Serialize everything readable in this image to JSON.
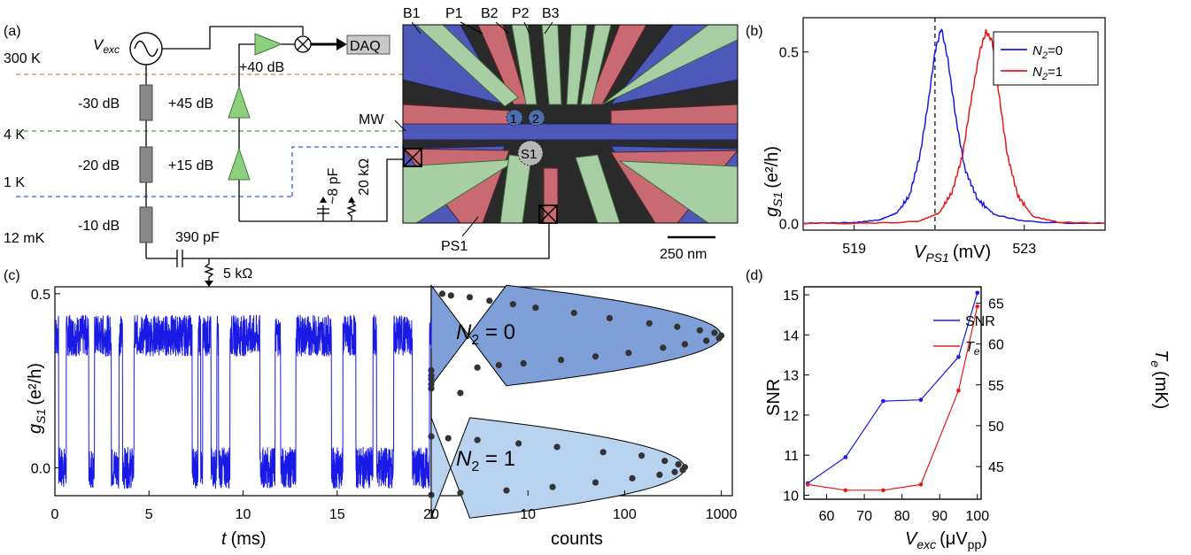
{
  "panels": {
    "a": {
      "label": "(a)",
      "temperatures": [
        "300 K",
        "4 K",
        "1 K",
        "12 mK"
      ],
      "source": "V",
      "source_sub": "exc",
      "attenuators": [
        "-30 dB",
        "-20 dB",
        "-10 dB"
      ],
      "amplifiers": [
        "+40 dB",
        "+45 dB",
        "+15 dB"
      ],
      "daq": "DAQ",
      "cap_c1": "390 pF",
      "res_r1": "5 kΩ",
      "cap_c2": "~8 pF",
      "res_r2": "20 kΩ",
      "gates": [
        "B1",
        "P1",
        "B2",
        "P2",
        "B3"
      ],
      "mw": "MW",
      "ps1": "PS1",
      "dots": [
        "1",
        "2",
        "S1"
      ],
      "scalebar": "250 nm"
    },
    "b": {
      "label": "(b)"
    },
    "c": {
      "label": "(c)"
    },
    "d": {
      "label": "(d)"
    }
  },
  "chart_data": [
    {
      "panel": "b",
      "type": "line",
      "xlabel": "V",
      "xlabel_sub": "PS1",
      "xlabel_unit": "(mV)",
      "ylabel": "g",
      "ylabel_sub": "S1",
      "ylabel_unit": "(e²/h)",
      "xlim": [
        517.8,
        524.9
      ],
      "ylim": [
        -0.02,
        0.6
      ],
      "xticks": [
        519,
        523
      ],
      "xticklabels": [
        "519",
        "523"
      ],
      "yticks": [
        0.0,
        0.5
      ],
      "yticklabels": [
        "0.0",
        "0.5"
      ],
      "vline_x": 520.9,
      "legend": "top-right",
      "series": [
        {
          "name": "N",
          "name_sub": "2",
          "name_tail": "=0",
          "color": "#1a1ae6",
          "x": [
            517.8,
            519.0,
            519.6,
            520.0,
            520.3,
            520.55,
            520.75,
            520.9,
            521.05,
            521.2,
            521.4,
            521.6,
            521.9,
            522.3,
            523.0,
            524.0,
            524.9
          ],
          "y": [
            0.0,
            0.002,
            0.01,
            0.03,
            0.08,
            0.2,
            0.36,
            0.5,
            0.57,
            0.48,
            0.3,
            0.16,
            0.07,
            0.025,
            0.006,
            0.0,
            0.0
          ]
        },
        {
          "name": "N",
          "name_sub": "2",
          "name_tail": "=1",
          "color": "#e61a1a",
          "x": [
            517.8,
            519.5,
            520.5,
            521.0,
            521.3,
            521.55,
            521.75,
            521.95,
            522.1,
            522.25,
            522.4,
            522.6,
            522.85,
            523.2,
            523.8,
            524.9
          ],
          "y": [
            0.0,
            0.0,
            0.005,
            0.03,
            0.09,
            0.2,
            0.36,
            0.5,
            0.56,
            0.53,
            0.38,
            0.2,
            0.08,
            0.02,
            0.003,
            0.0
          ]
        }
      ]
    },
    {
      "panel": "c-left",
      "type": "line",
      "xlabel": "t",
      "xlabel_unit": "(ms)",
      "ylabel": "g",
      "ylabel_sub": "S1",
      "ylabel_unit": "(e²/h)",
      "xlim": [
        0,
        20
      ],
      "ylim": [
        -0.08,
        0.52
      ],
      "xticks": [
        0,
        5,
        10,
        15,
        20
      ],
      "xticklabels": [
        "0",
        "5",
        "10",
        "15",
        "20"
      ],
      "yticks": [
        0.0,
        0.5
      ],
      "yticklabels": [
        "0.0",
        "0.5"
      ],
      "high_level": 0.38,
      "low_level": 0.0,
      "low_intervals": [
        [
          0.2,
          0.6
        ],
        [
          1.8,
          2.1
        ],
        [
          3.0,
          3.4
        ],
        [
          3.6,
          4.2
        ],
        [
          7.3,
          7.6
        ],
        [
          7.75,
          7.85
        ],
        [
          8.3,
          8.6
        ],
        [
          8.7,
          9.3
        ],
        [
          10.9,
          11.7
        ],
        [
          12.0,
          12.8
        ],
        [
          14.7,
          15.3
        ],
        [
          16.0,
          16.9
        ],
        [
          17.1,
          18.0
        ],
        [
          19.0,
          19.9
        ]
      ],
      "color": "#1a1ae6"
    },
    {
      "panel": "c-right",
      "type": "scatter",
      "xlabel": "counts",
      "xscale": "log",
      "xlim": [
        1,
        1300
      ],
      "xticks": [
        1,
        10,
        100,
        1000
      ],
      "xticklabels": [
        "1",
        "10",
        "100",
        "1000"
      ],
      "ylim": [
        -0.08,
        0.52
      ],
      "fits": [
        {
          "text": "N",
          "sub": "2",
          "tail": " = 0",
          "mu": 0.38,
          "sigma": 0.045,
          "A": 1000,
          "color": "#7f9fd8"
        },
        {
          "text": "N",
          "sub": "2",
          "tail": " = 1",
          "mu": 0.0,
          "sigma": 0.045,
          "A": 420,
          "color": "#b7d3ef"
        }
      ],
      "points": [
        [
          1.3,
          0.5
        ],
        [
          1.6,
          0.495
        ],
        [
          2.5,
          0.49
        ],
        [
          4,
          0.48
        ],
        [
          7,
          0.47
        ],
        [
          12,
          0.46
        ],
        [
          30,
          0.445
        ],
        [
          70,
          0.43
        ],
        [
          180,
          0.415
        ],
        [
          350,
          0.405
        ],
        [
          600,
          0.395
        ],
        [
          850,
          0.388
        ],
        [
          1000,
          0.38
        ],
        [
          950,
          0.372
        ],
        [
          700,
          0.365
        ],
        [
          420,
          0.355
        ],
        [
          250,
          0.345
        ],
        [
          110,
          0.33
        ],
        [
          50,
          0.32
        ],
        [
          22,
          0.31
        ],
        [
          9,
          0.3
        ],
        [
          5,
          0.295
        ],
        [
          3,
          0.288
        ],
        [
          1,
          0.28
        ],
        [
          1,
          0.265
        ],
        [
          1,
          0.255
        ],
        [
          1,
          0.24
        ],
        [
          1,
          0.228
        ],
        [
          2,
          0.215
        ],
        [
          1,
          0.09
        ],
        [
          1.5,
          0.085
        ],
        [
          3,
          0.08
        ],
        [
          8,
          0.07
        ],
        [
          20,
          0.06
        ],
        [
          60,
          0.045
        ],
        [
          150,
          0.035
        ],
        [
          260,
          0.02
        ],
        [
          360,
          0.01
        ],
        [
          420,
          0.002
        ],
        [
          400,
          -0.006
        ],
        [
          330,
          -0.012
        ],
        [
          230,
          -0.02
        ],
        [
          120,
          -0.03
        ],
        [
          50,
          -0.042
        ],
        [
          18,
          -0.055
        ],
        [
          6,
          -0.065
        ],
        [
          2,
          -0.072
        ],
        [
          1,
          -0.078
        ]
      ]
    },
    {
      "panel": "d",
      "type": "line",
      "xlabel": "V",
      "xlabel_sub": "exc",
      "xlabel_unit": "(μV",
      "xlabel_unit_sub": "pp",
      "xlabel_unit_tail": ")",
      "ylabel": "SNR",
      "y2label": "T",
      "y2label_sub": "e",
      "y2label_unit": "(mK)",
      "xlim": [
        54,
        101
      ],
      "ylim": [
        9.9,
        15.2
      ],
      "y2lim": [
        41,
        67
      ],
      "xticks": [
        60,
        70,
        80,
        90,
        100
      ],
      "xticklabels": [
        "60",
        "70",
        "80",
        "90",
        "100"
      ],
      "yticks": [
        10,
        11,
        12,
        13,
        14,
        15
      ],
      "yticklabels": [
        "10",
        "11",
        "12",
        "13",
        "14",
        "15"
      ],
      "y2ticks": [
        45,
        50,
        55,
        60,
        65
      ],
      "y2ticklabels": [
        "45",
        "50",
        "55",
        "60",
        "65"
      ],
      "legend": "top-center",
      "series": [
        {
          "name": "SNR",
          "axis": "left",
          "color": "#1a1ae6",
          "x": [
            55,
            65,
            75,
            85,
            95,
            100
          ],
          "y": [
            10.3,
            10.95,
            12.35,
            12.38,
            13.45,
            15.05
          ]
        },
        {
          "name": "T",
          "name_sub": "e",
          "axis": "right",
          "color": "#e61a1a",
          "x": [
            55,
            65,
            75,
            85,
            95,
            100
          ],
          "y": [
            42.8,
            42.1,
            42.1,
            42.8,
            54.3,
            64.6
          ]
        }
      ]
    }
  ]
}
